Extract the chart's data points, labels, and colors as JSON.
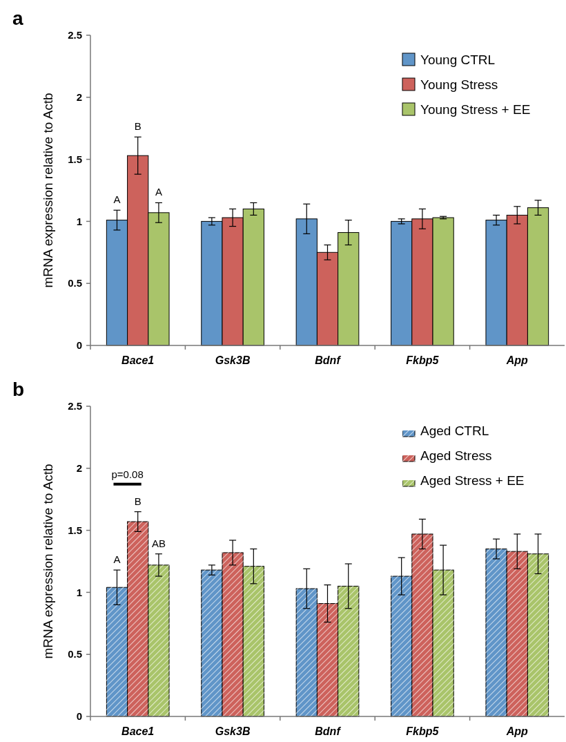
{
  "chart_data": [
    {
      "type": "bar",
      "title": "a",
      "ylabel": "mRNA expression relative to Actb",
      "categories": [
        "Bace1",
        "Gsk3B",
        "Bdnf",
        "Fkbp5",
        "App"
      ],
      "ylim": [
        0,
        2.5
      ],
      "yticks": [
        0,
        0.5,
        1,
        1.5,
        2,
        2.5
      ],
      "legend": "top right",
      "grid": false,
      "series": [
        {
          "name": "Young CTRL",
          "color": "#6095c8",
          "values": [
            1.01,
            1.0,
            1.02,
            1.0,
            1.01
          ],
          "errors": [
            0.08,
            0.03,
            0.12,
            0.02,
            0.04
          ]
        },
        {
          "name": "Young Stress",
          "color": "#cd625c",
          "values": [
            1.53,
            1.03,
            0.75,
            1.02,
            1.05
          ],
          "errors": [
            0.15,
            0.07,
            0.06,
            0.08,
            0.07
          ]
        },
        {
          "name": "Young Stress + EE",
          "color": "#a9c46a",
          "values": [
            1.07,
            1.1,
            0.91,
            1.03,
            1.11
          ],
          "errors": [
            0.08,
            0.05,
            0.1,
            0.01,
            0.06
          ]
        }
      ],
      "annotations": [
        "A",
        "B",
        "A"
      ]
    },
    {
      "type": "bar",
      "title": "b",
      "ylabel": "mRNA expression relative to Actb",
      "categories": [
        "Bace1",
        "Gsk3B",
        "Bdnf",
        "Fkbp5",
        "App"
      ],
      "ylim": [
        0,
        2.5
      ],
      "yticks": [
        0,
        0.5,
        1,
        1.5,
        2,
        2.5
      ],
      "legend": "top right",
      "grid": false,
      "series": [
        {
          "name": "Aged CTRL",
          "color": "#6095c8",
          "values": [
            1.04,
            1.18,
            1.03,
            1.13,
            1.35
          ],
          "errors": [
            0.14,
            0.04,
            0.16,
            0.15,
            0.08
          ]
        },
        {
          "name": "Aged Stress",
          "color": "#cd625c",
          "values": [
            1.57,
            1.32,
            0.91,
            1.47,
            1.33
          ],
          "errors": [
            0.08,
            0.1,
            0.15,
            0.12,
            0.14
          ]
        },
        {
          "name": "Aged Stress + EE",
          "color": "#a9c46a",
          "values": [
            1.22,
            1.21,
            1.05,
            1.18,
            1.31
          ],
          "errors": [
            0.09,
            0.14,
            0.18,
            0.2,
            0.16
          ]
        }
      ],
      "annotations": [
        "A",
        "B",
        "AB",
        "p=0.08"
      ]
    }
  ]
}
